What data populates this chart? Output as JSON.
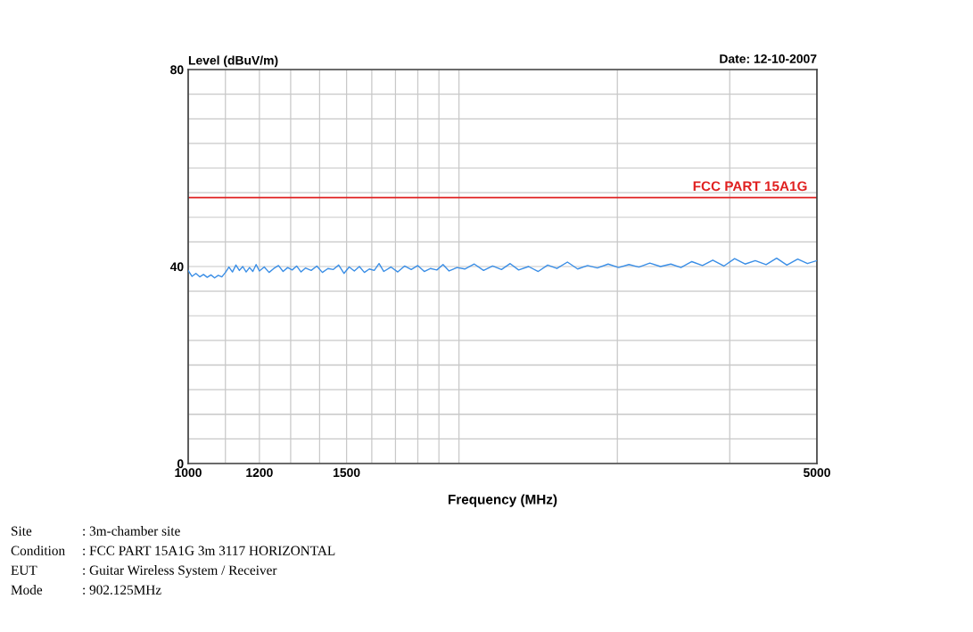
{
  "chart_data": {
    "type": "line",
    "title": "Level (dBuV/m)",
    "xlabel": "Frequency (MHz)",
    "annotations": [
      "Date: 12-10-2007",
      "Site",
      ": 3m-chamber site",
      "Condition",
      ": FCC PART 15A1G 3m 3117 HORIZONTAL",
      "EUT",
      ": Guitar Wireless System / Receiver",
      "Mode",
      ": 902.125MHz"
    ],
    "log": "x",
    "xlim": [
      1000,
      5000
    ],
    "xticks": [
      1000,
      {
        "value": 1100,
        "label": null
      },
      1200,
      {
        "value": 1300,
        "label": null
      },
      {
        "value": 1400,
        "label": null
      },
      1500,
      {
        "value": 1600,
        "label": null
      },
      {
        "value": 1700,
        "label": null
      },
      {
        "value": 1800,
        "label": null
      },
      {
        "value": 1900,
        "label": null
      },
      {
        "value": 2000,
        "label": null
      },
      {
        "value": 3000,
        "label": null
      },
      {
        "value": 4000,
        "label": null
      },
      5000
    ],
    "ylim": [
      0,
      80
    ],
    "yticks": [
      0,
      {
        "value": 5,
        "label": null
      },
      {
        "value": 10,
        "label": null
      },
      {
        "value": 15,
        "label": null
      },
      {
        "value": 20,
        "label": null
      },
      {
        "value": 25,
        "label": null
      },
      {
        "value": 30,
        "label": null
      },
      {
        "value": 35,
        "label": null
      },
      40,
      {
        "value": 45,
        "label": null
      },
      {
        "value": 50,
        "label": null
      },
      {
        "value": 55,
        "label": null
      },
      {
        "value": 60,
        "label": null
      },
      {
        "value": 65,
        "label": null
      },
      {
        "value": 70,
        "label": null
      },
      {
        "value": 75,
        "label": null
      },
      80
    ],
    "grid": true,
    "ref_lines": [
      {
        "axis": "y",
        "value": 54,
        "label": "FCC PART 15A1G",
        "color": "#e02020"
      }
    ],
    "series": [
      {
        "color": "#3a8ee6",
        "x": [
          1000,
          1010,
          1020,
          1030,
          1040,
          1050,
          1060,
          1070,
          1080,
          1090,
          1100,
          1110,
          1120,
          1130,
          1140,
          1150,
          1160,
          1170,
          1180,
          1190,
          1200,
          1215,
          1230,
          1245,
          1260,
          1275,
          1290,
          1305,
          1320,
          1335,
          1350,
          1370,
          1390,
          1410,
          1430,
          1450,
          1470,
          1490,
          1510,
          1530,
          1550,
          1570,
          1590,
          1610,
          1630,
          1650,
          1680,
          1710,
          1740,
          1770,
          1800,
          1830,
          1860,
          1890,
          1920,
          1950,
          1990,
          2030,
          2080,
          2130,
          2180,
          2230,
          2280,
          2330,
          2390,
          2450,
          2510,
          2570,
          2640,
          2710,
          2780,
          2850,
          2930,
          3010,
          3090,
          3170,
          3260,
          3350,
          3440,
          3530,
          3630,
          3730,
          3830,
          3940,
          4050,
          4160,
          4270,
          4390,
          4510,
          4630,
          4760,
          4880,
          5000
        ],
        "values": [
          39.2,
          38.0,
          38.6,
          37.9,
          38.4,
          37.8,
          38.3,
          37.7,
          38.2,
          37.9,
          38.8,
          39.9,
          38.9,
          40.3,
          39.2,
          40.0,
          38.9,
          39.8,
          39.0,
          40.4,
          39.1,
          39.9,
          38.8,
          39.6,
          40.2,
          39.0,
          39.8,
          39.3,
          40.1,
          38.9,
          39.7,
          39.2,
          40.1,
          38.8,
          39.6,
          39.4,
          40.3,
          38.6,
          39.9,
          39.1,
          40.0,
          38.8,
          39.5,
          39.2,
          40.6,
          39.0,
          39.9,
          38.9,
          40.1,
          39.4,
          40.2,
          39.0,
          39.6,
          39.3,
          40.4,
          39.1,
          39.8,
          39.5,
          40.5,
          39.2,
          40.1,
          39.4,
          40.6,
          39.3,
          40.0,
          39.0,
          40.3,
          39.6,
          40.9,
          39.5,
          40.2,
          39.7,
          40.5,
          39.8,
          40.4,
          39.9,
          40.7,
          40.0,
          40.5,
          39.8,
          41.0,
          40.2,
          41.3,
          40.1,
          41.6,
          40.5,
          41.2,
          40.4,
          41.7,
          40.3,
          41.5,
          40.6,
          41.2
        ]
      }
    ]
  }
}
